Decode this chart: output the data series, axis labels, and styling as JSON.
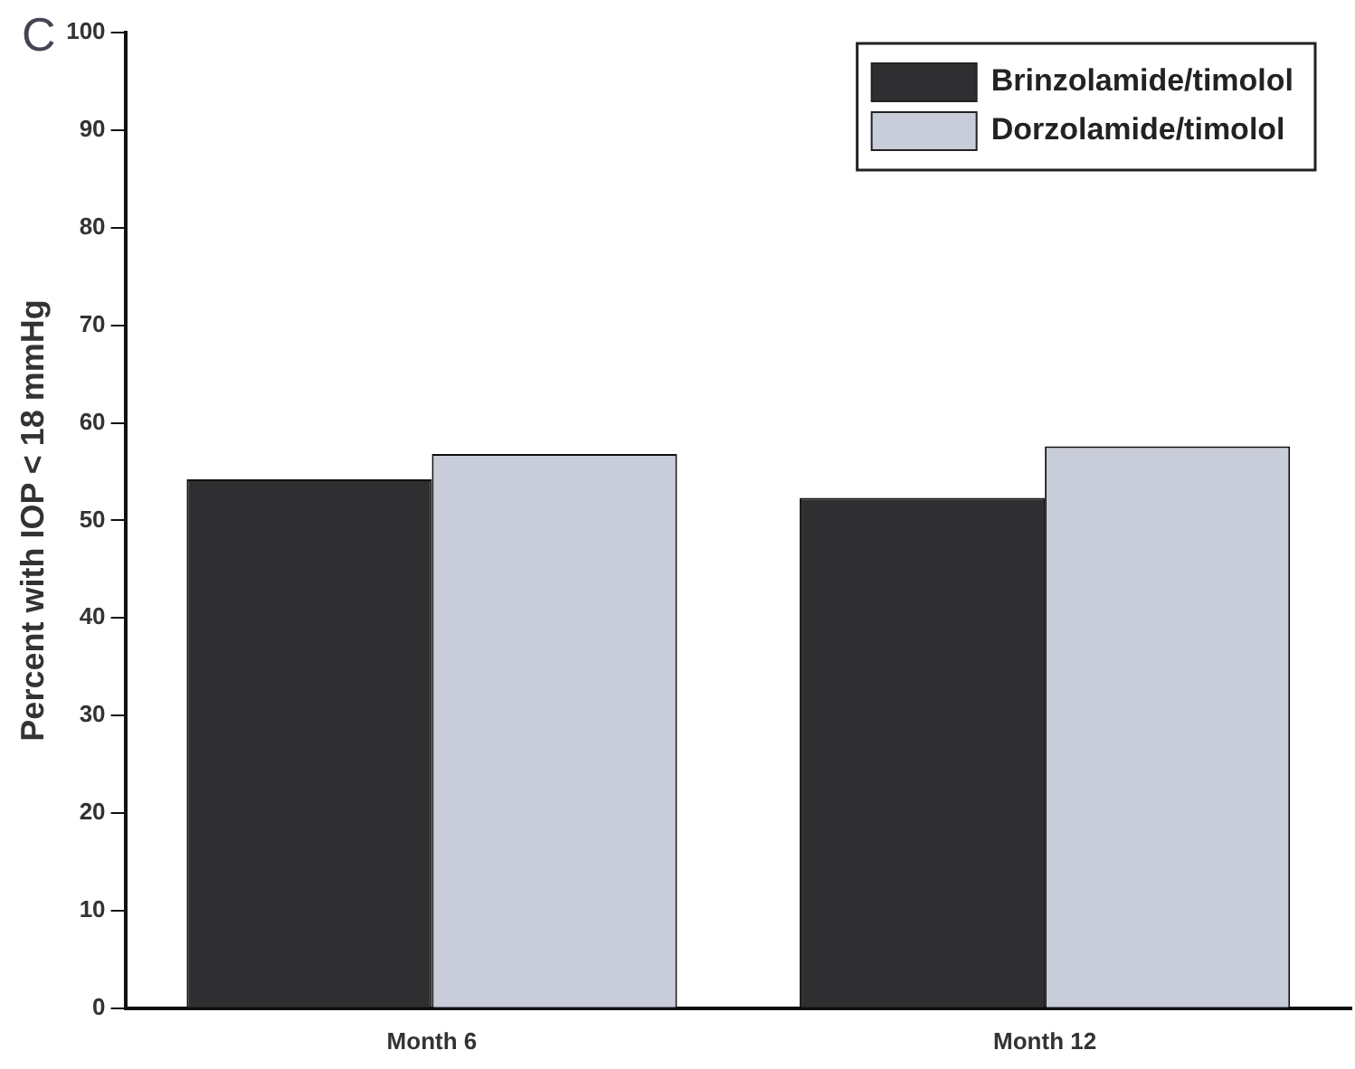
{
  "chart_data": {
    "type": "bar",
    "ylabel": "Percent with IOP < 18 mmHg",
    "annotations": [
      "C"
    ],
    "categories": [
      "Month 6",
      "Month 12"
    ],
    "series": [
      {
        "name": "Brinzolamide/timolol",
        "color": "#2f2f31",
        "values": [
          54.2,
          52.3
        ]
      },
      {
        "name": "Dorzolamide/timolol",
        "color": "#c9cdd9",
        "values": [
          56.8,
          57.6
        ]
      }
    ],
    "ylim": [
      0,
      100
    ],
    "yticks": [
      0,
      10,
      20,
      30,
      40,
      50,
      60,
      70,
      80,
      90,
      100
    ],
    "grid": false,
    "legend": "top right"
  }
}
